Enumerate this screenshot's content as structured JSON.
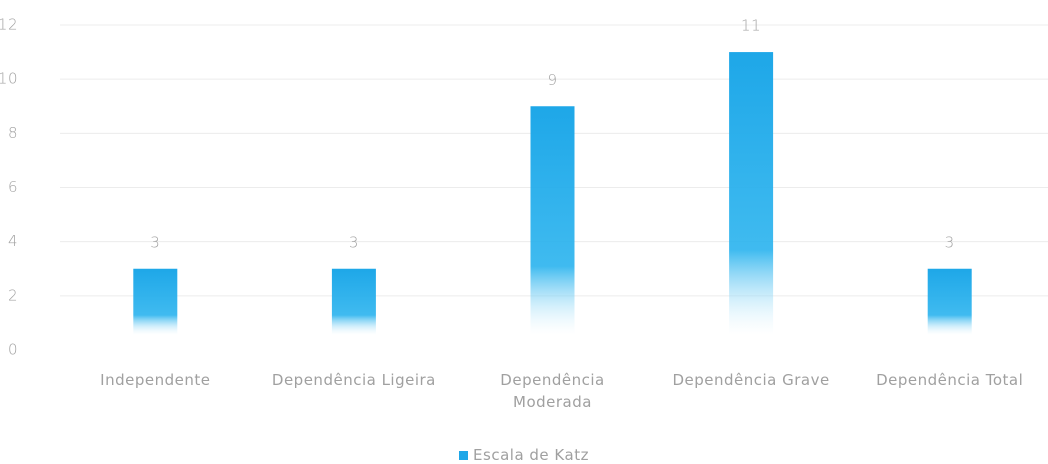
{
  "chart_data": {
    "type": "bar",
    "categories": [
      "Independente",
      "Dependência Ligeira",
      "Dependência Moderada",
      "Dependência Grave",
      "Dependência Total"
    ],
    "series": [
      {
        "name": "Escala de Katz",
        "color": "#1ea7e8",
        "values": [
          3,
          3,
          9,
          11,
          3
        ]
      }
    ],
    "ylim": [
      0,
      12
    ],
    "yticks": [
      0,
      2,
      4,
      6,
      8,
      10,
      12
    ],
    "grid": true,
    "legend": "bottom",
    "data_labels": true
  }
}
